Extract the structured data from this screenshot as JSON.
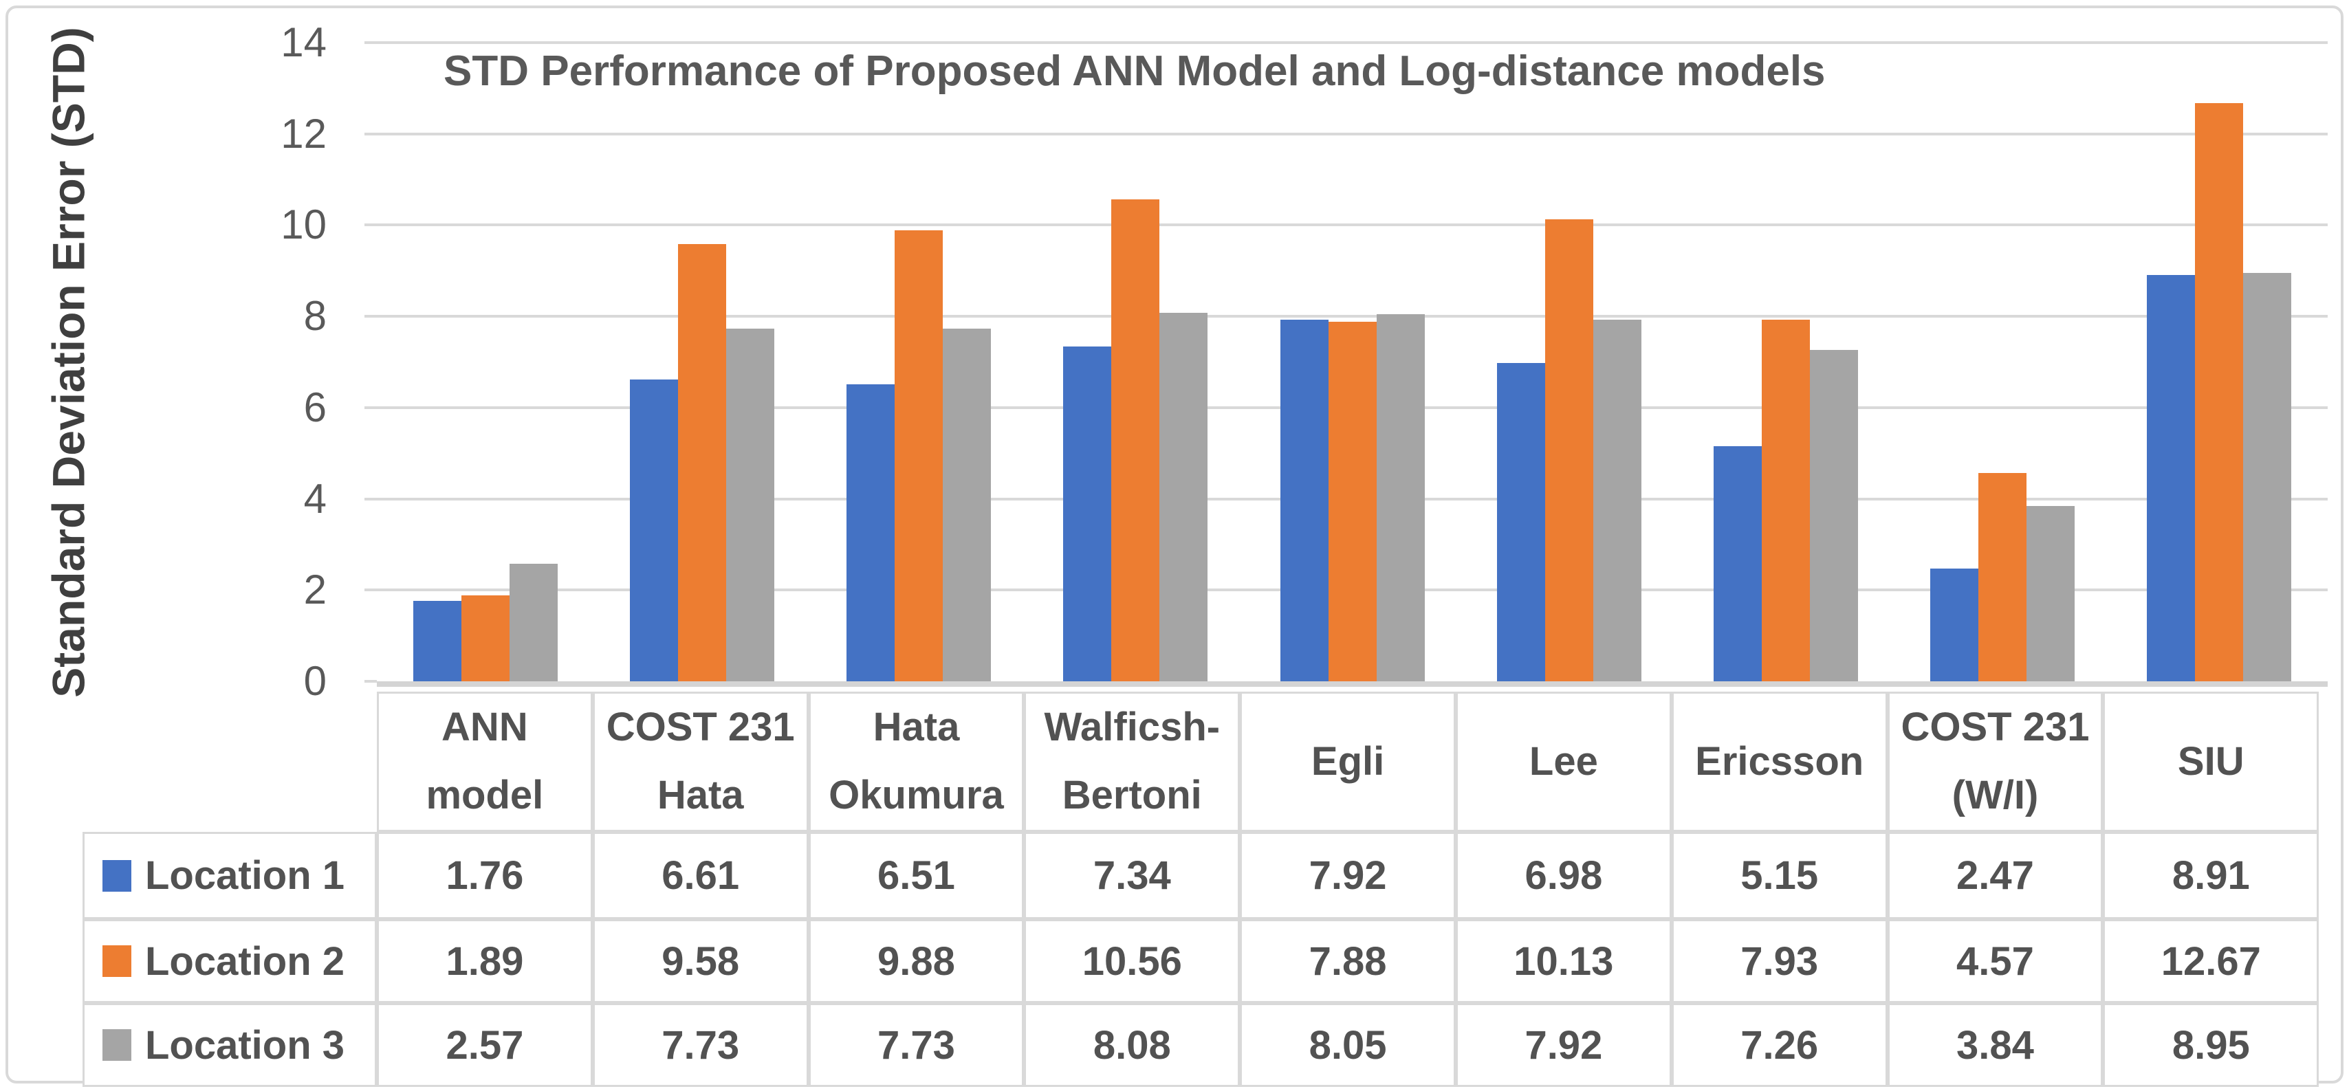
{
  "chart": {
    "colors": {
      "location1": "#4472C4",
      "location2": "#ED7D31",
      "location3": "#A5A5A5",
      "gridline": "#D9D9D9",
      "axis_line": "#D4D4D4",
      "frame_border": "#D9D9D9",
      "tick_text": "#595959",
      "title_text": "#595959",
      "table_text": "#525252"
    }
  },
  "chart_data": {
    "type": "bar",
    "title": "STD Performance of Proposed ANN Model and Log-distance models",
    "xlabel": "",
    "ylabel": "Standard Deviation Error (STD)",
    "ylim": [
      0,
      14
    ],
    "yticks": [
      0,
      2,
      4,
      6,
      8,
      10,
      12,
      14
    ],
    "grid": true,
    "legend_position": "data-table-left",
    "categories": [
      "ANN model",
      "COST 231 Hata",
      "Hata Okumura",
      "Walficsh-Bertoni",
      "Egli",
      "Lee",
      "Ericsson",
      "COST 231 (W/I)",
      "SIU"
    ],
    "categories_multiline": [
      "ANN\nmodel",
      "COST 231\nHata",
      "Hata\nOkumura",
      "Walficsh-\nBertoni",
      "Egli",
      "Lee",
      "Ericsson",
      "COST 231\n(W/I)",
      "SIU"
    ],
    "series": [
      {
        "name": "Location 1",
        "color": "#4472C4",
        "values": [
          1.76,
          6.61,
          6.51,
          7.34,
          7.92,
          6.98,
          5.15,
          2.47,
          8.91
        ]
      },
      {
        "name": "Location 2",
        "color": "#ED7D31",
        "values": [
          1.89,
          9.58,
          9.88,
          10.56,
          7.88,
          10.13,
          7.93,
          4.57,
          12.67
        ]
      },
      {
        "name": "Location 3",
        "color": "#A5A5A5",
        "values": [
          2.57,
          7.73,
          7.73,
          8.08,
          8.05,
          7.92,
          7.26,
          3.84,
          8.95
        ]
      }
    ]
  }
}
